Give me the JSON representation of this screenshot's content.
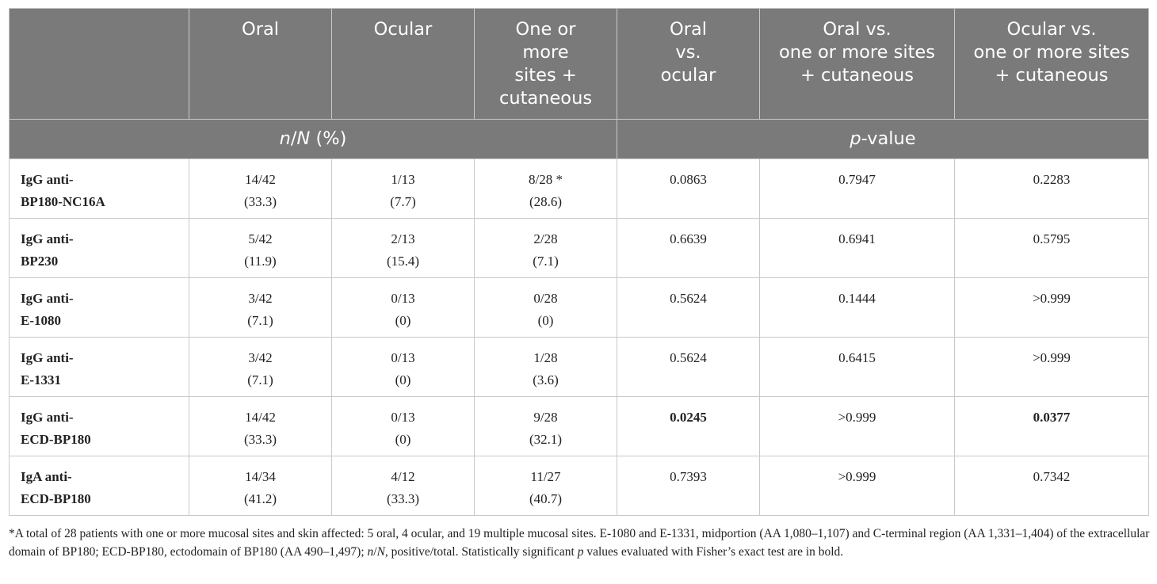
{
  "table": {
    "headers": {
      "col0": "",
      "oral": [
        "Oral"
      ],
      "ocular": [
        "Ocular"
      ],
      "multi": [
        "One or",
        "more",
        "sites +",
        "cutaneous"
      ],
      "oral_vs_ocular": [
        "Oral",
        "vs.",
        "ocular"
      ],
      "oral_vs_multi": [
        "Oral vs.",
        "one or more sites",
        "+ cutaneous"
      ],
      "ocular_vs_multi": [
        "Ocular vs.",
        "one or more sites",
        "+ cutaneous"
      ]
    },
    "subheaders": {
      "left_a": "n",
      "left_b": "/",
      "left_c": "N",
      "left_d": " (%)",
      "right_a": "p",
      "right_b": "-value"
    },
    "rows": [
      {
        "label": [
          "IgG anti-",
          "BP180-NC16A"
        ],
        "oral": [
          "14/42",
          "(33.3)"
        ],
        "ocular": [
          "1/13",
          "(7.7)"
        ],
        "multi": [
          "8/28 *",
          "(28.6)"
        ],
        "p1": "0.0863",
        "p2": "0.7947",
        "p3": "0.2283"
      },
      {
        "label": [
          "IgG anti-",
          "BP230"
        ],
        "oral": [
          "5/42",
          "(11.9)"
        ],
        "ocular": [
          "2/13",
          "(15.4)"
        ],
        "multi": [
          "2/28",
          "(7.1)"
        ],
        "p1": "0.6639",
        "p2": "0.6941",
        "p3": "0.5795"
      },
      {
        "label": [
          "IgG anti-",
          "E-1080"
        ],
        "oral": [
          "3/42",
          "(7.1)"
        ],
        "ocular": [
          "0/13",
          "(0)"
        ],
        "multi": [
          "0/28",
          "(0)"
        ],
        "p1": "0.5624",
        "p2": "0.1444",
        "p3": ">0.999"
      },
      {
        "label": [
          "IgG anti-",
          "E-1331"
        ],
        "oral": [
          "3/42",
          "(7.1)"
        ],
        "ocular": [
          "0/13",
          "(0)"
        ],
        "multi": [
          "1/28",
          "(3.6)"
        ],
        "p1": "0.5624",
        "p2": "0.6415",
        "p3": ">0.999"
      },
      {
        "label": [
          "IgG anti-",
          "ECD-BP180"
        ],
        "oral": [
          "14/42",
          "(33.3)"
        ],
        "ocular": [
          "0/13",
          "(0)"
        ],
        "multi": [
          "9/28",
          "(32.1)"
        ],
        "p1": "0.0245",
        "p2": ">0.999",
        "p3": "0.0377"
      },
      {
        "label": [
          "IgA anti-",
          "ECD-BP180"
        ],
        "oral": [
          "14/34",
          "(41.2)"
        ],
        "ocular": [
          "4/12",
          "(33.3)"
        ],
        "multi": [
          "11/27",
          "(40.7)"
        ],
        "p1": "0.7393",
        "p2": ">0.999",
        "p3": "0.7342"
      }
    ]
  },
  "footnote": {
    "part1": "*A total of 28 patients with one or more mucosal sites and skin affected: 5 oral, 4 ocular, and 19 multiple mucosal sites. E-1080 and E-1331, midportion (AA 1,080–1,107) and C-terminal region (AA 1,331–1,404) of the extracellular domain of BP180; ECD-BP180, ectodomain of BP180 (AA 490–1,497); ",
    "n": "n",
    "slash": "/",
    "N": "N",
    "part2": ", positive/total. Statistically significant ",
    "p": "p",
    "part3": " values evaluated with Fisher’s exact test are in bold."
  }
}
